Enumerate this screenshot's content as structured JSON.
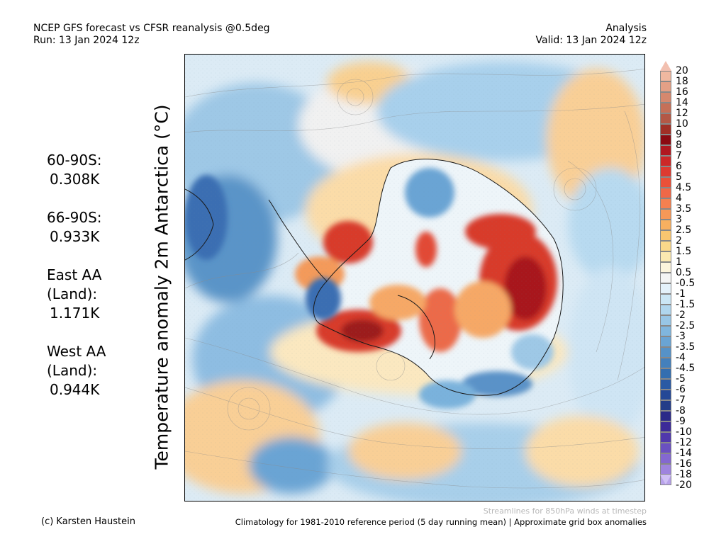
{
  "header": {
    "title": "NCEP GFS forecast vs CFSR reanalysis @0.5deg",
    "run": "Run: 13 Jan 2024 12z",
    "mode": "Analysis",
    "valid": "Valid: 13 Jan 2024 12z"
  },
  "vertical_label": "Temperature anomaly 2m Antarctica (°C)",
  "stats": [
    {
      "label": "60-90S:",
      "value": "0.308K"
    },
    {
      "label": "66-90S:",
      "value": "0.933K"
    },
    {
      "label": "East AA (Land):",
      "value": "1.171K"
    },
    {
      "label": "West AA (Land):",
      "value": "0.944K"
    }
  ],
  "colorbar": {
    "labels": [
      "20",
      "18",
      "16",
      "14",
      "12",
      "10",
      "9",
      "8",
      "7",
      "6",
      "5",
      "4.5",
      "4",
      "3.5",
      "3",
      "2.5",
      "2",
      "1.5",
      "1",
      "0.5",
      "-0.5",
      "-1",
      "-1.5",
      "-2",
      "-2.5",
      "-3",
      "-3.5",
      "-4",
      "-4.5",
      "-5",
      "-6",
      "-7",
      "-8",
      "-9",
      "-10",
      "-12",
      "-14",
      "-16",
      "-18",
      "-20"
    ],
    "colors": [
      "#f0b8a0",
      "#e3a086",
      "#d5886e",
      "#c57058",
      "#b35846",
      "#a02f26",
      "#8b0a12",
      "#b01820",
      "#cc2828",
      "#de3a30",
      "#ea5038",
      "#f06848",
      "#f48050",
      "#f59858",
      "#f7b060",
      "#f9c670",
      "#fad88a",
      "#fbe8b0",
      "#fcf4dc",
      "#f4f4f4",
      "#e4f1fa",
      "#cbe6f5",
      "#b0d6ee",
      "#98c6e6",
      "#80b6de",
      "#6aa4d4",
      "#5692c8",
      "#4480bc",
      "#346eb0",
      "#2a5aa4",
      "#244896",
      "#233c88",
      "#2c2a88",
      "#3c2a98",
      "#5038ac",
      "#6a50c0",
      "#8468d0",
      "#9e84de",
      "#b8a2ea"
    ],
    "tri_top_color": "#f2c0b0",
    "tri_bot_color": "#cfc0f5"
  },
  "footer": {
    "credit": "(c) Karsten Haustein",
    "streamlines_note": "Streamlines for 850hPa winds at timestep",
    "climatology": "Climatology for 1981-2010 reference period (5 day running mean) | Approximate grid box anomalies"
  }
}
